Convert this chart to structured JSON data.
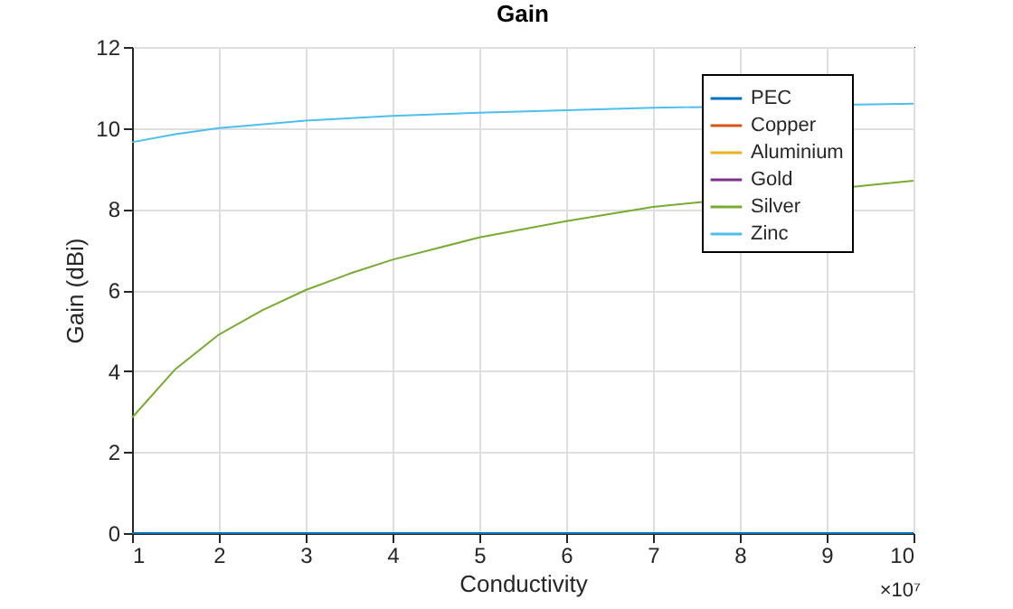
{
  "chart_data": {
    "type": "line",
    "title": "Gain",
    "xlabel": "Conductivity",
    "ylabel": "Gain (dBi)",
    "annotations": [
      "×10⁷"
    ],
    "xlim": [
      1,
      10
    ],
    "xticks": [
      1,
      2,
      3,
      4,
      5,
      6,
      7,
      8,
      9,
      10
    ],
    "ylim": [
      0,
      12
    ],
    "yticks": [
      0,
      2,
      4,
      6,
      8,
      10,
      12
    ],
    "grid": true,
    "legend": "top right",
    "line_style": "solid",
    "series": [
      {
        "name": "PEC",
        "color": "#0072bd",
        "x": [
          1,
          10
        ],
        "values": [
          0,
          0
        ]
      },
      {
        "name": "Copper",
        "color": "#d95319"
      },
      {
        "name": "Aluminium",
        "color": "#edb120"
      },
      {
        "name": "Gold",
        "color": "#7e2f8e"
      },
      {
        "name": "Silver",
        "color": "#77ac30",
        "x": [
          1,
          1.5,
          2,
          2.5,
          3,
          3.5,
          4,
          5,
          6,
          7,
          10
        ],
        "values": [
          2.85,
          4.05,
          4.9,
          5.5,
          6.0,
          6.4,
          6.75,
          7.3,
          7.7,
          8.05,
          8.7
        ]
      },
      {
        "name": "Zinc",
        "color": "#4dbeee",
        "x": [
          1,
          1.5,
          2,
          3,
          4,
          5,
          6,
          7,
          10
        ],
        "values": [
          9.65,
          9.85,
          10.0,
          10.18,
          10.3,
          10.38,
          10.44,
          10.5,
          10.6
        ]
      }
    ]
  }
}
